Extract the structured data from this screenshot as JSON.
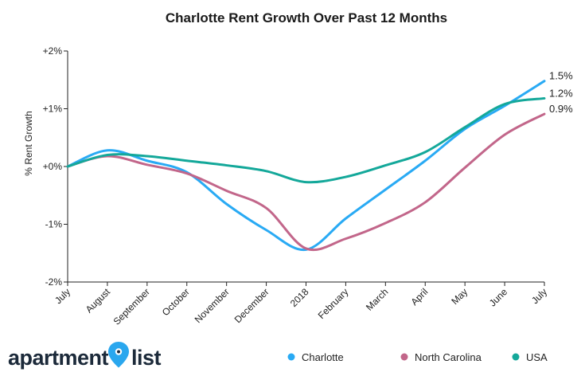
{
  "chart_data": {
    "type": "line",
    "title": "Charlotte Rent Growth Over Past 12 Months",
    "xlabel": "",
    "ylabel": "% Rent Growth",
    "categories": [
      "July",
      "August",
      "September",
      "October",
      "November",
      "December",
      "2018",
      "February",
      "March",
      "April",
      "May",
      "June",
      "July"
    ],
    "yticks": [
      {
        "value": 2,
        "label": "+2%"
      },
      {
        "value": 1,
        "label": "+1%"
      },
      {
        "value": 0,
        "label": "+0%"
      },
      {
        "value": -1,
        "label": "-1%"
      },
      {
        "value": -2,
        "label": "-2%"
      }
    ],
    "ylim": [
      -2,
      2
    ],
    "grid": false,
    "legend_position": "bottom-right",
    "series": [
      {
        "name": "Charlotte",
        "color": "#29aaf4",
        "end_label": "1.5%",
        "values": [
          0.0,
          0.28,
          0.1,
          -0.1,
          -0.65,
          -1.1,
          -1.44,
          -0.9,
          -0.4,
          0.1,
          0.65,
          1.05,
          1.48
        ]
      },
      {
        "name": "North Carolina",
        "color": "#c2668a",
        "end_label": "0.9%",
        "values": [
          0.0,
          0.18,
          0.03,
          -0.12,
          -0.42,
          -0.72,
          -1.42,
          -1.25,
          -0.98,
          -0.62,
          -0.02,
          0.55,
          0.91
        ]
      },
      {
        "name": "USA",
        "color": "#14a89a",
        "end_label": "1.2%",
        "values": [
          0.0,
          0.2,
          0.18,
          0.1,
          0.02,
          -0.08,
          -0.27,
          -0.18,
          0.02,
          0.25,
          0.68,
          1.08,
          1.18
        ]
      }
    ]
  },
  "logo": {
    "word1": "apartment",
    "word2": "list"
  }
}
